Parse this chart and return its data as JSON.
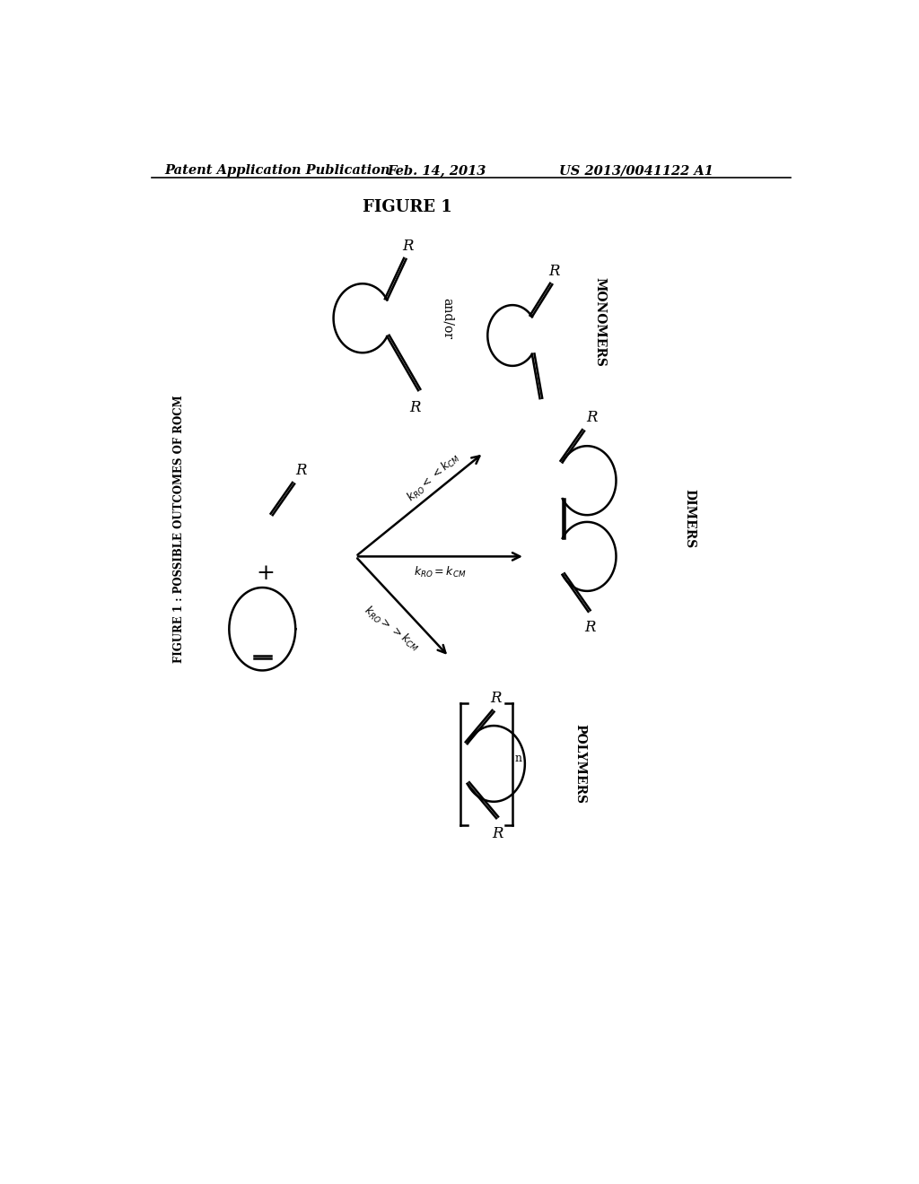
{
  "title": "FIGURE 1",
  "header_left": "Patent Application Publication",
  "header_center": "Feb. 14, 2013",
  "header_right": "US 2013/0041122 A1",
  "sidebar_text": "FIGURE 1 : POSSIBLE OUTCOMES OF ROCM",
  "bg_color": "#ffffff",
  "text_color": "#000000",
  "line_color": "#000000",
  "font_size_header": 11,
  "font_size_title": 13
}
